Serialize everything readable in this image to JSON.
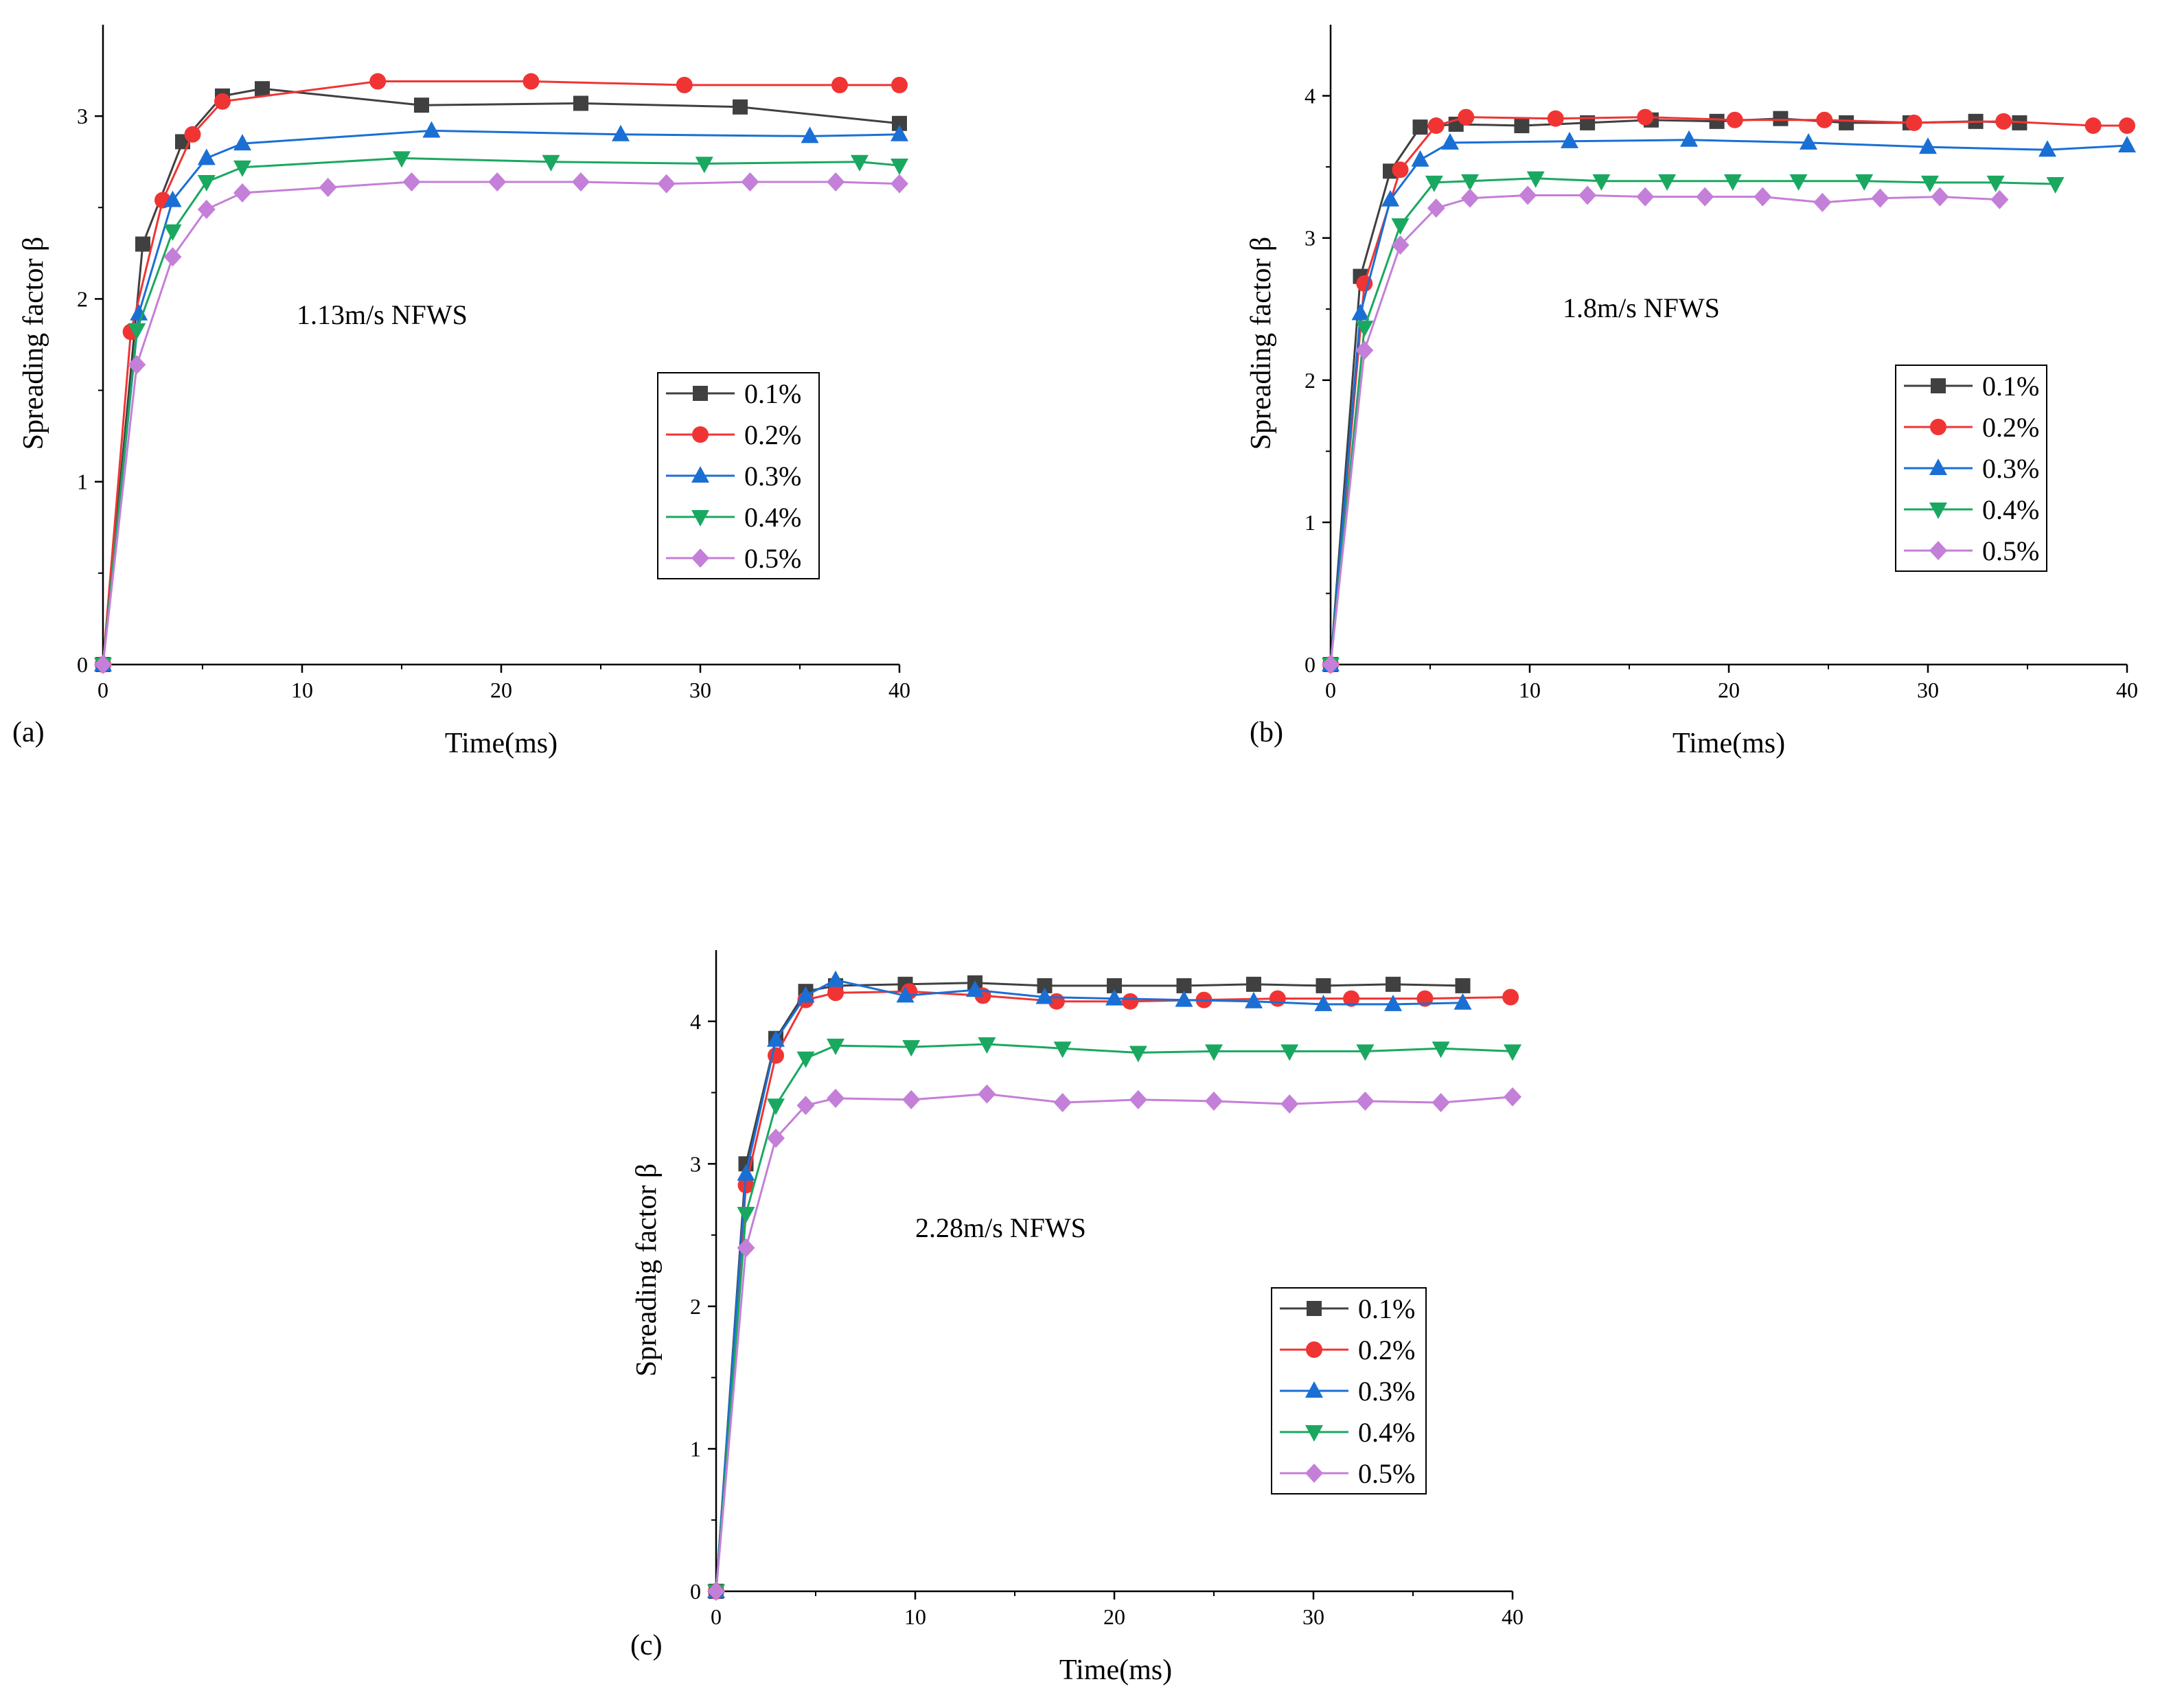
{
  "series_styles": [
    {
      "color": "#404040",
      "marker": "square"
    },
    {
      "color": "#f03434",
      "marker": "circle"
    },
    {
      "color": "#1a6fd4",
      "marker": "triangle-up"
    },
    {
      "color": "#1aa860",
      "marker": "triangle-down"
    },
    {
      "color": "#c47fd8",
      "marker": "diamond"
    }
  ],
  "chart_data": [
    {
      "type": "line",
      "panel_label": "(a)",
      "annotation": "1.13m/s   NFWS",
      "xlabel": "Time(ms)",
      "ylabel": "Spreading factor β",
      "xlim": [
        0,
        40
      ],
      "ylim": [
        0,
        3.5
      ],
      "xticks": [
        0,
        10,
        20,
        30,
        40
      ],
      "yticks": [
        0,
        1,
        2,
        3
      ],
      "legend_position": "center-right",
      "series": [
        {
          "name": "0.1%",
          "x": [
            0,
            2.0,
            4.0,
            6.0,
            8.0,
            16.0,
            24.0,
            32.0,
            40.0
          ],
          "y": [
            0,
            2.3,
            2.86,
            3.11,
            3.15,
            3.06,
            3.07,
            3.05,
            2.96
          ]
        },
        {
          "name": "0.2%",
          "x": [
            0,
            1.4,
            3.0,
            4.5,
            6.0,
            13.8,
            21.5,
            29.2,
            37.0,
            40.0
          ],
          "y": [
            0,
            1.82,
            2.54,
            2.9,
            3.08,
            3.19,
            3.19,
            3.17,
            3.17,
            3.17
          ]
        },
        {
          "name": "0.3%",
          "x": [
            0,
            1.8,
            3.5,
            5.2,
            7.0,
            16.5,
            26.0,
            35.5,
            40.0
          ],
          "y": [
            0,
            1.92,
            2.54,
            2.77,
            2.85,
            2.92,
            2.9,
            2.89,
            2.9
          ]
        },
        {
          "name": "0.4%",
          "x": [
            0,
            1.7,
            3.5,
            5.2,
            7.0,
            15.0,
            22.5,
            30.2,
            38.0,
            40.0
          ],
          "y": [
            0,
            1.83,
            2.37,
            2.64,
            2.72,
            2.77,
            2.75,
            2.74,
            2.75,
            2.73
          ]
        },
        {
          "name": "0.5%",
          "x": [
            0,
            1.7,
            3.5,
            5.2,
            7.0,
            11.3,
            15.5,
            19.8,
            24.0,
            28.3,
            32.5,
            36.8,
            40.0
          ],
          "y": [
            0,
            1.64,
            2.23,
            2.49,
            2.58,
            2.61,
            2.64,
            2.64,
            2.64,
            2.63,
            2.64,
            2.64,
            2.63
          ]
        }
      ]
    },
    {
      "type": "line",
      "panel_label": "(b)",
      "annotation": "1.8m/s   NFWS",
      "xlabel": "Time(ms)",
      "ylabel": "Spreading factor β",
      "xlim": [
        0,
        40
      ],
      "ylim": [
        0,
        4.5
      ],
      "xticks": [
        0,
        10,
        20,
        30,
        40
      ],
      "yticks": [
        0,
        1,
        2,
        3,
        4
      ],
      "legend_position": "center-right",
      "series": [
        {
          "name": "0.1%",
          "x": [
            0,
            1.5,
            3.0,
            4.5,
            6.3,
            9.6,
            12.9,
            16.1,
            19.4,
            22.6,
            25.9,
            29.1,
            32.4,
            34.6
          ],
          "y": [
            0,
            2.73,
            3.47,
            3.78,
            3.8,
            3.79,
            3.81,
            3.83,
            3.82,
            3.84,
            3.81,
            3.81,
            3.82,
            3.81
          ]
        },
        {
          "name": "0.2%",
          "x": [
            0,
            1.7,
            3.5,
            5.3,
            6.8,
            11.3,
            15.8,
            20.3,
            24.8,
            29.3,
            33.8,
            38.3,
            40.0
          ],
          "y": [
            0,
            2.68,
            3.48,
            3.79,
            3.85,
            3.84,
            3.85,
            3.83,
            3.83,
            3.81,
            3.82,
            3.79,
            3.79
          ]
        },
        {
          "name": "0.3%",
          "x": [
            0,
            1.5,
            3.0,
            4.5,
            6.0,
            12.0,
            18.0,
            24.0,
            30.0,
            36.0,
            40.0
          ],
          "y": [
            0,
            2.47,
            3.27,
            3.55,
            3.67,
            3.68,
            3.69,
            3.67,
            3.64,
            3.62,
            3.65
          ]
        },
        {
          "name": "0.4%",
          "x": [
            0,
            1.7,
            3.5,
            5.2,
            7.0,
            10.3,
            13.6,
            16.9,
            20.2,
            23.5,
            26.8,
            30.1,
            33.4,
            36.4
          ],
          "y": [
            0,
            2.37,
            3.09,
            3.39,
            3.4,
            3.42,
            3.4,
            3.4,
            3.4,
            3.4,
            3.4,
            3.39,
            3.39,
            3.38
          ]
        },
        {
          "name": "0.5%",
          "x": [
            0,
            1.7,
            3.5,
            5.3,
            7.0,
            9.9,
            12.9,
            15.8,
            18.8,
            21.7,
            24.7,
            27.6,
            30.6,
            33.6
          ],
          "y": [
            0,
            2.21,
            2.95,
            3.21,
            3.28,
            3.3,
            3.3,
            3.29,
            3.29,
            3.29,
            3.25,
            3.28,
            3.29,
            3.27
          ]
        }
      ]
    },
    {
      "type": "line",
      "panel_label": "(c)",
      "annotation": "2.28m/s   NFWS",
      "xlabel": "Time(ms)",
      "ylabel": "Spreading factor β",
      "xlim": [
        0,
        40
      ],
      "ylim": [
        0,
        4.5
      ],
      "xticks": [
        0,
        10,
        20,
        30,
        40
      ],
      "yticks": [
        0,
        1,
        2,
        3,
        4
      ],
      "legend_position": "center-right",
      "series": [
        {
          "name": "0.1%",
          "x": [
            0,
            1.5,
            3.0,
            4.5,
            6.0,
            9.5,
            13.0,
            16.5,
            20.0,
            23.5,
            27.0,
            30.5,
            34.0,
            37.5
          ],
          "y": [
            0,
            3.0,
            3.88,
            4.21,
            4.25,
            4.26,
            4.27,
            4.25,
            4.25,
            4.25,
            4.26,
            4.25,
            4.26,
            4.25
          ]
        },
        {
          "name": "0.2%",
          "x": [
            0,
            1.5,
            3.0,
            4.5,
            6.0,
            9.7,
            13.4,
            17.1,
            20.8,
            24.5,
            28.2,
            31.9,
            35.6,
            39.9
          ],
          "y": [
            0,
            2.85,
            3.76,
            4.15,
            4.2,
            4.21,
            4.18,
            4.14,
            4.14,
            4.15,
            4.16,
            4.16,
            4.16,
            4.17
          ]
        },
        {
          "name": "0.3%",
          "x": [
            0,
            1.5,
            3.0,
            4.5,
            6.0,
            9.5,
            13.0,
            16.5,
            20.0,
            23.5,
            27.0,
            30.5,
            34.0,
            37.5
          ],
          "y": [
            0,
            2.93,
            3.87,
            4.18,
            4.29,
            4.18,
            4.22,
            4.17,
            4.16,
            4.15,
            4.14,
            4.12,
            4.12,
            4.13
          ]
        },
        {
          "name": "0.4%",
          "x": [
            0,
            1.5,
            3.0,
            4.5,
            6.0,
            9.8,
            13.6,
            17.4,
            21.2,
            25.0,
            28.8,
            32.6,
            36.4,
            40.0
          ],
          "y": [
            0,
            2.65,
            3.41,
            3.74,
            3.83,
            3.82,
            3.84,
            3.81,
            3.78,
            3.79,
            3.79,
            3.79,
            3.81,
            3.79
          ]
        },
        {
          "name": "0.5%",
          "x": [
            0,
            1.5,
            3.0,
            4.5,
            6.0,
            9.8,
            13.6,
            17.4,
            21.2,
            25.0,
            28.8,
            32.6,
            36.4,
            40.0
          ],
          "y": [
            0,
            2.41,
            3.18,
            3.41,
            3.46,
            3.45,
            3.49,
            3.43,
            3.45,
            3.44,
            3.42,
            3.44,
            3.43,
            3.47
          ]
        }
      ]
    }
  ]
}
